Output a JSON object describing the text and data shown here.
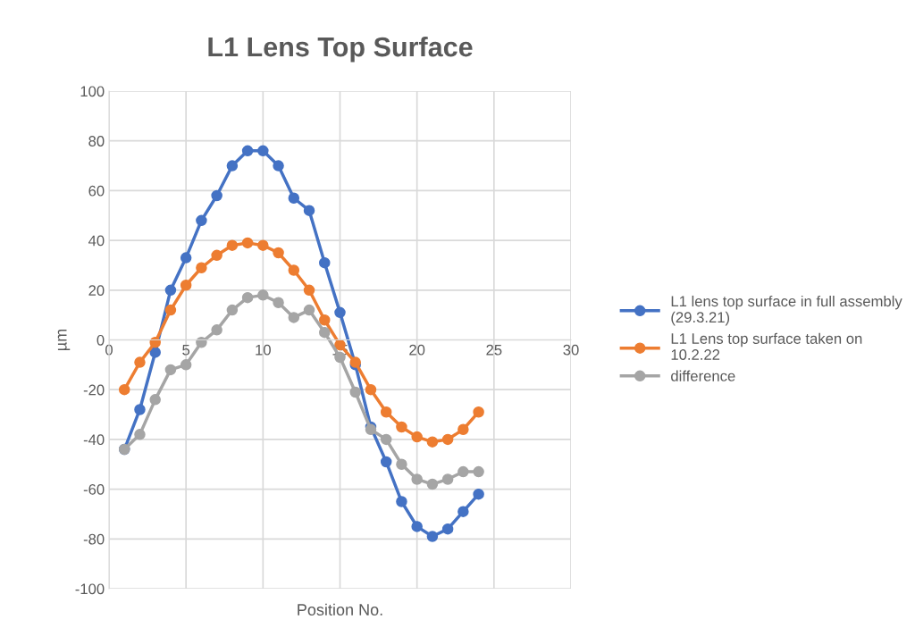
{
  "chart_data": {
    "type": "line",
    "title": "L1 Lens Top Surface",
    "xlabel": "Position No.",
    "ylabel": "µm",
    "x": [
      1,
      2,
      3,
      4,
      5,
      6,
      7,
      8,
      9,
      10,
      11,
      12,
      13,
      14,
      15,
      16,
      17,
      18,
      19,
      20,
      21,
      22,
      23,
      24
    ],
    "series": [
      {
        "name": "L1 lens top surface in full assembly (29.3.21)",
        "color": "#4472c4",
        "values": [
          -44,
          -28,
          -5,
          20,
          33,
          48,
          58,
          70,
          76,
          76,
          70,
          57,
          52,
          31,
          11,
          -10,
          -35,
          -49,
          -65,
          -75,
          -79,
          -76,
          -69,
          -62
        ]
      },
      {
        "name": "L1 Lens top surface taken on 10.2.22",
        "color": "#ed7d31",
        "values": [
          -20,
          -9,
          -1,
          12,
          22,
          29,
          34,
          38,
          39,
          38,
          35,
          28,
          20,
          8,
          -2,
          -9,
          -20,
          -29,
          -35,
          -39,
          -41,
          -40,
          -36,
          -29
        ]
      },
      {
        "name": "difference",
        "color": "#a5a5a5",
        "values": [
          -44,
          -38,
          -24,
          -12,
          -10,
          -1,
          4,
          12,
          17,
          18,
          15,
          9,
          12,
          3,
          -7,
          -21,
          -36,
          -40,
          -50,
          -56,
          -58,
          -56,
          -53,
          -53
        ]
      }
    ],
    "xlim": [
      0,
      30
    ],
    "xticks": [
      0,
      5,
      10,
      15,
      20,
      25,
      30
    ],
    "ylim": [
      -100,
      100
    ],
    "yticks": [
      -100,
      -80,
      -60,
      -40,
      -20,
      0,
      20,
      40,
      60,
      80,
      100
    ],
    "grid": true,
    "legend": "right",
    "marker": "circle",
    "line_style": "solid"
  }
}
